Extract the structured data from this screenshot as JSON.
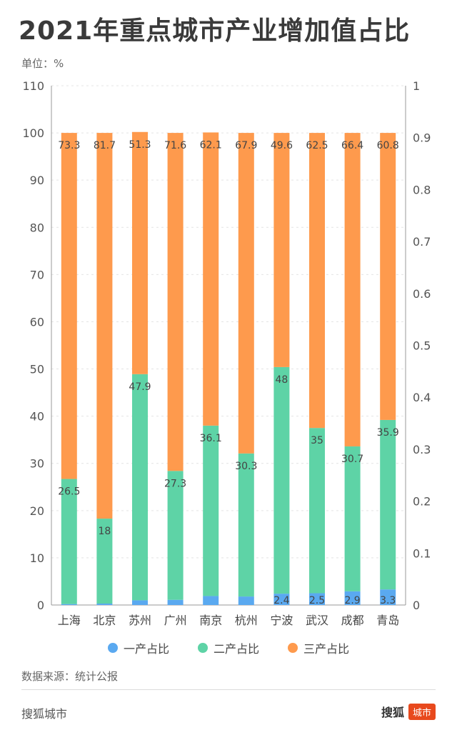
{
  "header": {
    "title": "2021年重点城市产业增加值占比",
    "unit": "单位：%"
  },
  "colors": {
    "primary": "#5aa9f0",
    "secondary": "#5ed3a6",
    "tertiary": "#fe9a4d"
  },
  "chart_data": {
    "type": "bar",
    "stacked": true,
    "categories": [
      "上海",
      "北京",
      "苏州",
      "广州",
      "南京",
      "杭州",
      "宁波",
      "武汉",
      "成都",
      "青岛"
    ],
    "series": [
      {
        "name": "一产占比",
        "values": [
          0.2,
          0.3,
          1.0,
          1.1,
          1.9,
          1.8,
          2.4,
          2.5,
          2.9,
          3.3
        ],
        "labels": [
          "",
          "",
          "",
          "",
          "",
          "",
          "2.4",
          "2.5",
          "2.9",
          "3.3"
        ]
      },
      {
        "name": "二产占比",
        "values": [
          26.5,
          18,
          47.9,
          27.3,
          36.1,
          30.3,
          48,
          35,
          30.7,
          35.9
        ],
        "labels": [
          "26.5",
          "18",
          "47.9",
          "27.3",
          "36.1",
          "30.3",
          "48",
          "35",
          "30.7",
          "35.9"
        ]
      },
      {
        "name": "三产占比",
        "values": [
          73.3,
          81.7,
          51.3,
          71.6,
          62.1,
          67.9,
          49.6,
          62.5,
          66.4,
          60.8
        ],
        "labels": [
          "73.3",
          "81.7",
          "51.3",
          "71.6",
          "62.1",
          "67.9",
          "49.6",
          "62.5",
          "66.4",
          "60.8"
        ]
      }
    ],
    "ylim": [
      0,
      110
    ],
    "yticks": [
      0,
      10,
      20,
      30,
      40,
      50,
      60,
      70,
      80,
      90,
      100,
      110
    ],
    "y2lim": [
      0,
      1
    ],
    "y2ticks": [
      "0",
      "0.1",
      "0.2",
      "0.3",
      "0.4",
      "0.5",
      "0.6",
      "0.7",
      "0.8",
      "0.9",
      "1"
    ],
    "grid": true,
    "legend_position": "bottom"
  },
  "legend": {
    "items": [
      "一产占比",
      "二产占比",
      "三产占比"
    ]
  },
  "source": "数据来源：统计公报",
  "footer": {
    "brand": "搜狐城市",
    "logo_text": "搜狐",
    "logo_badge": "城市"
  }
}
